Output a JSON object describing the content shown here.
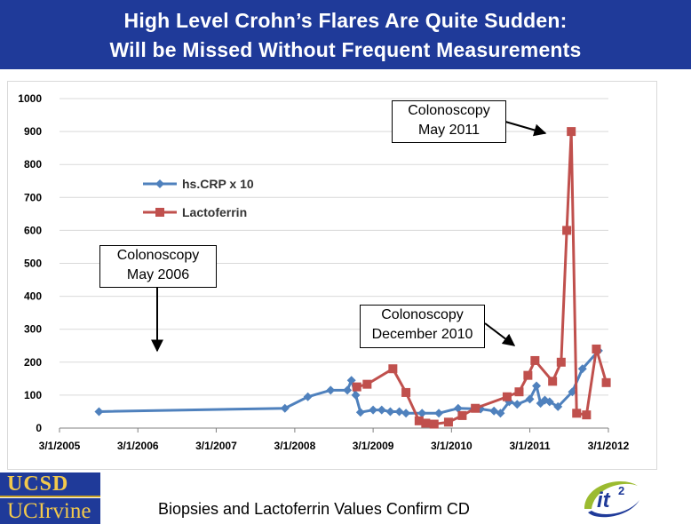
{
  "header": {
    "title_line1": "High Level Crohn’s Flares Are Quite Sudden:",
    "title_line2": "Will be Missed Without Frequent Measurements"
  },
  "chart_data": {
    "type": "line",
    "x_is_date": true,
    "xlim": [
      "2005-03-01",
      "2012-03-01"
    ],
    "ylim": [
      0,
      1000
    ],
    "ytick_labels": [
      "0",
      "100",
      "200",
      "300",
      "400",
      "500",
      "600",
      "700",
      "800",
      "900",
      "1000"
    ],
    "xtick_labels": [
      "3/1/2005",
      "3/1/2006",
      "3/1/2007",
      "3/1/2008",
      "3/1/2009",
      "3/1/2010",
      "3/1/2011",
      "3/1/2012"
    ],
    "xtick_dates": [
      "2005-03-01",
      "2006-03-01",
      "2007-03-01",
      "2008-03-01",
      "2009-03-01",
      "2010-03-01",
      "2011-03-01",
      "2012-03-01"
    ],
    "grid": "horizontal",
    "legend_position": "upper-left",
    "series": [
      {
        "name": "hs.CRP x 10",
        "color": "#4f81bd",
        "marker": "diamond",
        "points": [
          [
            "2005-09-01",
            50
          ],
          [
            "2008-01-15",
            60
          ],
          [
            "2008-05-01",
            95
          ],
          [
            "2008-08-15",
            115
          ],
          [
            "2008-11-01",
            115
          ],
          [
            "2008-11-20",
            145
          ],
          [
            "2008-12-10",
            100
          ],
          [
            "2009-01-01",
            48
          ],
          [
            "2009-03-01",
            55
          ],
          [
            "2009-04-10",
            55
          ],
          [
            "2009-05-20",
            50
          ],
          [
            "2009-07-01",
            50
          ],
          [
            "2009-08-01",
            45
          ],
          [
            "2009-10-15",
            45
          ],
          [
            "2010-01-01",
            45
          ],
          [
            "2010-04-01",
            60
          ],
          [
            "2010-07-15",
            58
          ],
          [
            "2010-09-15",
            52
          ],
          [
            "2010-10-15",
            45
          ],
          [
            "2010-11-25",
            80
          ],
          [
            "2011-01-01",
            72
          ],
          [
            "2011-03-01",
            88
          ],
          [
            "2011-04-01",
            128
          ],
          [
            "2011-04-20",
            75
          ],
          [
            "2011-05-10",
            85
          ],
          [
            "2011-06-01",
            80
          ],
          [
            "2011-07-10",
            65
          ],
          [
            "2011-09-15",
            110
          ],
          [
            "2011-11-01",
            180
          ],
          [
            "2012-01-15",
            235
          ]
        ]
      },
      {
        "name": "Lactoferrin",
        "color": "#c0504d",
        "marker": "square",
        "points": [
          [
            "2008-12-15",
            125
          ],
          [
            "2009-02-01",
            133
          ],
          [
            "2009-06-01",
            180
          ],
          [
            "2009-08-01",
            108
          ],
          [
            "2009-10-01",
            22
          ],
          [
            "2009-11-01",
            15
          ],
          [
            "2009-12-10",
            12
          ],
          [
            "2010-02-15",
            18
          ],
          [
            "2010-04-20",
            38
          ],
          [
            "2010-06-20",
            60
          ],
          [
            "2010-11-15",
            95
          ],
          [
            "2011-01-10",
            110
          ],
          [
            "2011-02-20",
            160
          ],
          [
            "2011-03-25",
            205
          ],
          [
            "2011-06-15",
            142
          ],
          [
            "2011-07-25",
            200
          ],
          [
            "2011-08-20",
            600
          ],
          [
            "2011-09-10",
            900
          ],
          [
            "2011-10-05",
            45
          ],
          [
            "2011-11-20",
            40
          ],
          [
            "2012-01-05",
            240
          ],
          [
            "2012-02-20",
            138
          ]
        ]
      }
    ],
    "annotations": [
      {
        "line1": "Colonoscopy",
        "line2": "May 2011"
      },
      {
        "line1": "Colonoscopy",
        "line2": "May 2006"
      },
      {
        "line1": "Colonoscopy",
        "line2": "December 2010"
      }
    ]
  },
  "footer": {
    "logo1_text": "UCSD",
    "logo2_text": "UCIrvine",
    "caption": "Biopsies and Lactoferrin Values Confirm CD",
    "it2_logo_text": "it",
    "it2_sup": "2"
  },
  "colors": {
    "header_bg": "#1f3a99",
    "logo_gold": "#f2c94c",
    "crp": "#4f81bd",
    "lactoferrin": "#c0504d"
  }
}
